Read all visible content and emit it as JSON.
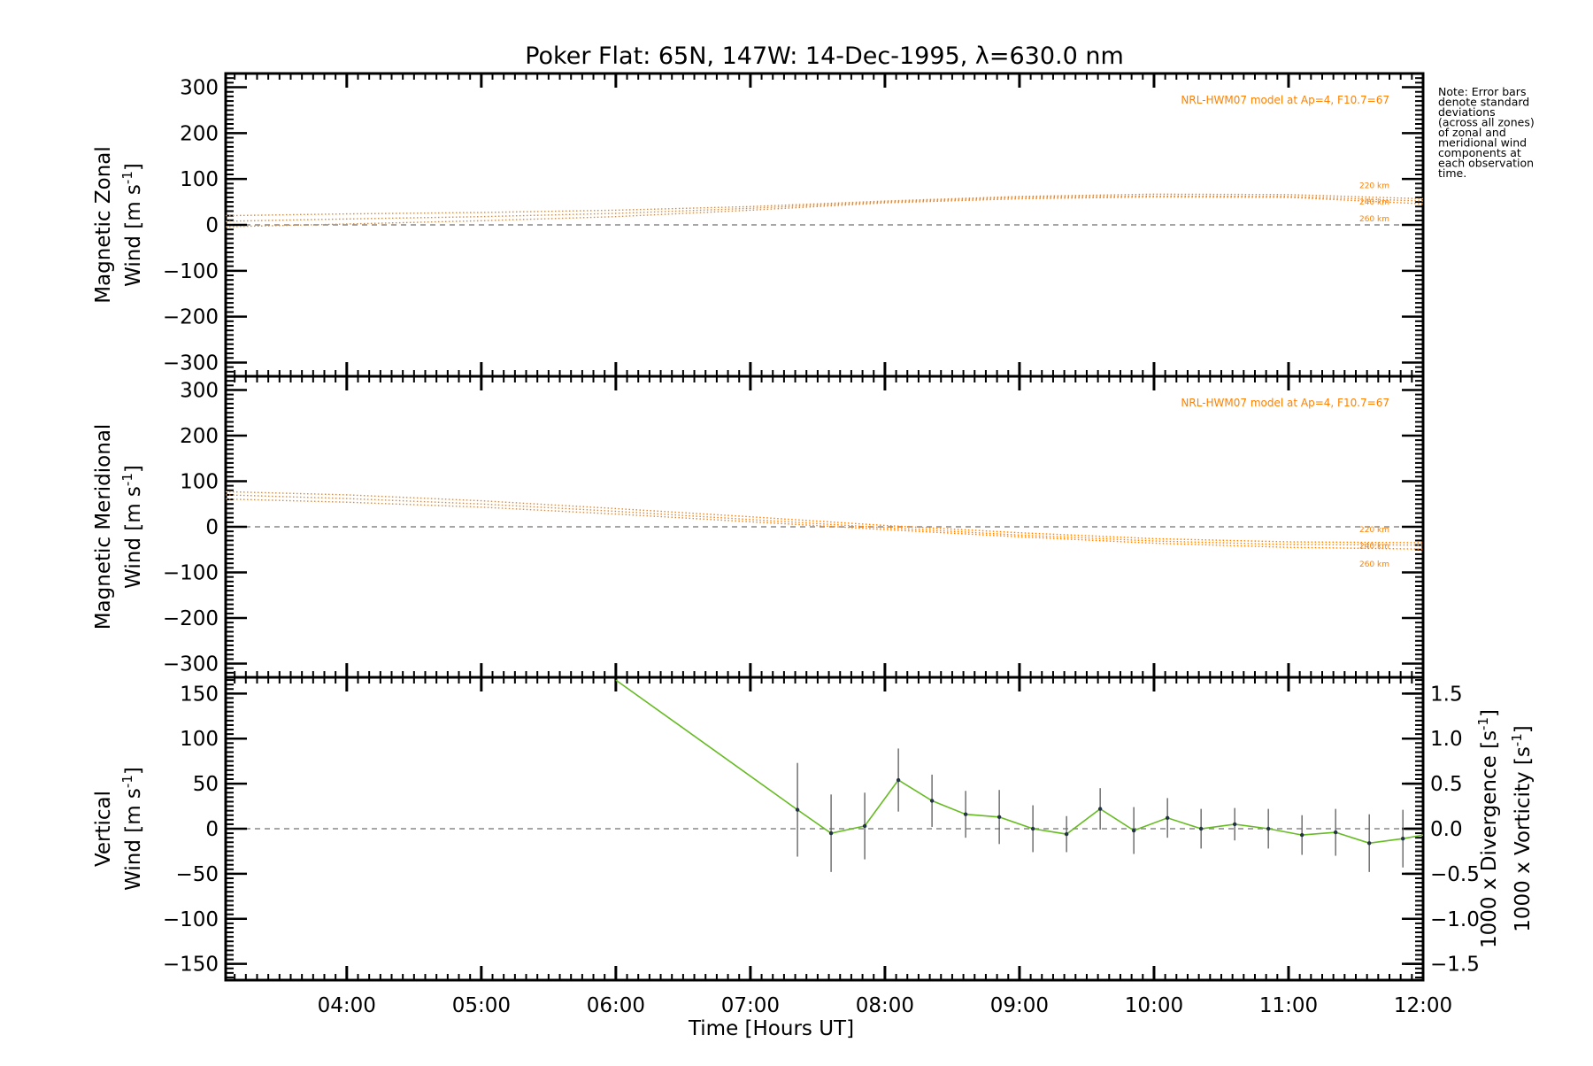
{
  "chart_data": [
    {
      "type": "line",
      "panel": "zonal",
      "title": "Poker Flat: 65N, 147W: 14-Dec-1995, λ=630.0 nm",
      "xlabel": "",
      "ylabel_line1": "Magnetic Zonal",
      "ylabel_line2": "Wind [m s",
      "ylabel_sup": "-1",
      "ylabel_end": "]",
      "xlim": [
        3.1,
        12.0
      ],
      "ylim": [
        -330,
        330
      ],
      "y_ticks": [
        "300",
        "200",
        "100",
        "0",
        "−100",
        "−200",
        "−300"
      ],
      "y_tick_values": [
        300,
        200,
        100,
        0,
        -100,
        -200,
        -300
      ],
      "zero_line": true,
      "model_label": "NRL-HWM07 model at Ap=4, F10.7=67",
      "series": [
        {
          "name": "220 km",
          "x": [
            3.1,
            4.0,
            5.0,
            6.0,
            7.0,
            8.0,
            9.0,
            10.0,
            11.0,
            12.0
          ],
          "y": [
            20,
            24,
            27,
            32,
            40,
            52,
            62,
            67,
            66,
            57
          ]
        },
        {
          "name": "240 km",
          "x": [
            3.1,
            4.0,
            5.0,
            6.0,
            7.0,
            8.0,
            9.0,
            10.0,
            11.0,
            12.0
          ],
          "y": [
            8,
            13,
            18,
            25,
            36,
            50,
            60,
            63,
            62,
            52
          ]
        },
        {
          "name": "260 km",
          "x": [
            3.1,
            4.0,
            5.0,
            6.0,
            7.0,
            8.0,
            9.0,
            10.0,
            11.0,
            12.0
          ],
          "y": [
            -4,
            2,
            9,
            18,
            32,
            48,
            57,
            61,
            60,
            46
          ]
        }
      ]
    },
    {
      "type": "line",
      "panel": "meridional",
      "ylabel_line1": "Magnetic Meridional",
      "ylabel_line2": "Wind [m s",
      "ylabel_sup": "-1",
      "ylabel_end": "]",
      "xlim": [
        3.1,
        12.0
      ],
      "ylim": [
        -330,
        330
      ],
      "y_ticks": [
        "300",
        "200",
        "100",
        "0",
        "−100",
        "−200",
        "−300"
      ],
      "y_tick_values": [
        300,
        200,
        100,
        0,
        -100,
        -200,
        -300
      ],
      "zero_line": true,
      "model_label": "NRL-HWM07 model at Ap=4, F10.7=67",
      "series": [
        {
          "name": "220 km",
          "x": [
            3.1,
            4.0,
            5.0,
            6.0,
            7.0,
            8.0,
            9.0,
            10.0,
            11.0,
            12.0
          ],
          "y": [
            77,
            70,
            57,
            40,
            22,
            3,
            -13,
            -26,
            -33,
            -35
          ]
        },
        {
          "name": "240 km",
          "x": [
            3.1,
            4.0,
            5.0,
            6.0,
            7.0,
            8.0,
            9.0,
            10.0,
            11.0,
            12.0
          ],
          "y": [
            70,
            62,
            50,
            34,
            16,
            -2,
            -18,
            -31,
            -39,
            -40
          ]
        },
        {
          "name": "260 km",
          "x": [
            3.1,
            4.0,
            5.0,
            6.0,
            7.0,
            8.0,
            9.0,
            10.0,
            11.0,
            12.0
          ],
          "y": [
            61,
            54,
            43,
            28,
            11,
            -6,
            -22,
            -36,
            -45,
            -49
          ]
        }
      ]
    },
    {
      "type": "line",
      "panel": "vertical",
      "xlabel": "Time [Hours UT]",
      "ylabel_line1": "Vertical",
      "ylabel_line2": "Wind [m s",
      "ylabel_sup": "-1",
      "ylabel_end": "]",
      "right_label_divergence": "1000 x Divergence [s",
      "right_label_vorticity": "1000 x Vorticity [s",
      "right_sup": "-1",
      "right_end": "]",
      "xlim": [
        3.1,
        12.0
      ],
      "ylim": [
        -168,
        168
      ],
      "y_ticks": [
        "150",
        "100",
        "50",
        "0",
        "−50",
        "−100",
        "−150"
      ],
      "y_tick_values": [
        150,
        100,
        50,
        0,
        -50,
        -100,
        -150
      ],
      "y2_ticks": [
        "1.5",
        "1.0",
        "0.5",
        "0.0",
        "−0.5",
        "−1.0",
        "−1.5"
      ],
      "y2_tick_values": [
        1.5,
        1.0,
        0.5,
        0.0,
        -0.5,
        -1.0,
        -1.5
      ],
      "x_ticks": [
        "04:00",
        "05:00",
        "06:00",
        "07:00",
        "08:00",
        "09:00",
        "10:00",
        "11:00",
        "12:00"
      ],
      "x_tick_values": [
        4,
        5,
        6,
        7,
        8,
        9,
        10,
        11,
        12
      ],
      "zero_line": true,
      "series": [
        {
          "name": "Vertical wind",
          "x": [
            6.0,
            7.35,
            7.6,
            7.85,
            8.1,
            8.35,
            8.6,
            8.85,
            9.1,
            9.35,
            9.6,
            9.85,
            10.1,
            10.35,
            10.6,
            10.85,
            11.1,
            11.35,
            11.6,
            11.85,
            12.0
          ],
          "y": [
            165,
            21,
            -5,
            3,
            54,
            31,
            16,
            13,
            0,
            -6,
            22,
            -2,
            12,
            0,
            5,
            0,
            -7,
            -4,
            -16,
            -11,
            -7
          ],
          "err": [
            null,
            52,
            43,
            37,
            35,
            29,
            26,
            30,
            26,
            20,
            23,
            26,
            22,
            22,
            18,
            22,
            22,
            26,
            32,
            32,
            0
          ]
        }
      ]
    }
  ],
  "note": {
    "lines": [
      "Note: Error bars",
      "denote standard",
      "deviations",
      "(across all zones)",
      "of zonal and",
      "meridional wind",
      "components at",
      "each observation",
      "time."
    ]
  },
  "colors": {
    "model": "#ff8000",
    "vertical": "#66bb22",
    "divergence": "#55aadd",
    "vorticity": "#ff5599",
    "errorbar": "#666666",
    "zero_line": "#888888",
    "axis": "#000000"
  }
}
